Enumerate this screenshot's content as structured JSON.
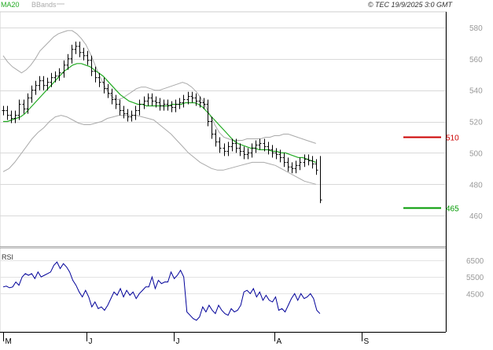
{
  "header": {
    "legend_ma": "MA20",
    "legend_bb": "BBands",
    "copyright": "© TEC 19/9/2025 3:0 GMT"
  },
  "rsi_label": "RSI",
  "chart_data": [
    {
      "type": "ohlc",
      "y_ticks": [
        "460",
        "480",
        "500",
        "520",
        "540",
        "560",
        "580"
      ],
      "ylim": [
        440,
        590
      ],
      "grid": true,
      "x_labels": [
        "M",
        "J",
        "J",
        "A",
        "S"
      ],
      "x_label_index": [
        0,
        20,
        41,
        65,
        86
      ],
      "closes": [
        527,
        524,
        522,
        524,
        531,
        528,
        535,
        540,
        543,
        546,
        543,
        545,
        548,
        549,
        551,
        556,
        560,
        566,
        568,
        564,
        562,
        559,
        552,
        548,
        545,
        541,
        538,
        534,
        531,
        527,
        525,
        523,
        524,
        527,
        531,
        533,
        535,
        533,
        532,
        530,
        531,
        530,
        529,
        531,
        532,
        534,
        536,
        535,
        533,
        532,
        531,
        520,
        512,
        507,
        503,
        501,
        504,
        506,
        503,
        501,
        499,
        500,
        503,
        505,
        506,
        504,
        502,
        500,
        499,
        497,
        494,
        491,
        490,
        492,
        494,
        496,
        495,
        493,
        489
      ],
      "series": [
        {
          "name": "MA20",
          "color": "#22aa22",
          "values": [
            520,
            520,
            521,
            522,
            523,
            525,
            528,
            531,
            534,
            537,
            540,
            543,
            546,
            549,
            552,
            554,
            556,
            557,
            557,
            556,
            555,
            553,
            551,
            549,
            546,
            543,
            540,
            537,
            535,
            533,
            532,
            531,
            531,
            530,
            530,
            530,
            530,
            530,
            530,
            531,
            531,
            531,
            532,
            532,
            532,
            531,
            529,
            526,
            523,
            520,
            517,
            514,
            511,
            508,
            506,
            505,
            504,
            503,
            503,
            502,
            502,
            502,
            501,
            501,
            500,
            500,
            499,
            498,
            497,
            497,
            496,
            495,
            494
          ]
        },
        {
          "name": "BBands",
          "color": "#aaaaaa",
          "role": "upper",
          "values": [
            562,
            558,
            555,
            553,
            551,
            553,
            556,
            560,
            565,
            568,
            571,
            574,
            576,
            577,
            578,
            578,
            576,
            573,
            569,
            563,
            556,
            549,
            543,
            538,
            535,
            534,
            535,
            537,
            539,
            541,
            542,
            542,
            541,
            540,
            540,
            541,
            542,
            543,
            544,
            545,
            544,
            542,
            539,
            535,
            530,
            524,
            518,
            513,
            510,
            509,
            508,
            508,
            508,
            509,
            509,
            509,
            509,
            510,
            510,
            511,
            511,
            512,
            512,
            511,
            510,
            509,
            508,
            507,
            506
          ]
        },
        {
          "name": "BBands",
          "color": "#aaaaaa",
          "role": "lower",
          "values": [
            488,
            490,
            494,
            499,
            504,
            509,
            513,
            516,
            520,
            523,
            524,
            523,
            521,
            519,
            518,
            518,
            519,
            520,
            522,
            523,
            524,
            524,
            524,
            524,
            523,
            522,
            521,
            518,
            515,
            512,
            508,
            504,
            500,
            497,
            494,
            492,
            490,
            489,
            489,
            490,
            491,
            492,
            493,
            494,
            494,
            494,
            493,
            492,
            490,
            488,
            486,
            484,
            482,
            481,
            480
          ]
        }
      ],
      "markers": [
        {
          "label": "510",
          "value": 510,
          "color": "#cc0000"
        },
        {
          "label": "465",
          "value": 465,
          "color": "#009900"
        }
      ],
      "last_bar": {
        "high": 498,
        "low": 468,
        "close": 470
      }
    },
    {
      "type": "line",
      "name": "RSI",
      "y_ticks": [
        "4500",
        "5500",
        "6500"
      ],
      "ylim": [
        2200,
        7300
      ],
      "color": "#000099",
      "values": [
        4900,
        4950,
        4850,
        4900,
        5200,
        5000,
        5500,
        5700,
        5600,
        5700,
        5400,
        5800,
        5500,
        5600,
        5700,
        5800,
        6200,
        6400,
        6000,
        6300,
        6100,
        5800,
        5300,
        5000,
        4600,
        4300,
        4700,
        4300,
        3700,
        4000,
        3600,
        3700,
        3500,
        3800,
        4200,
        4600,
        4400,
        4800,
        4300,
        4700,
        4400,
        4600,
        4200,
        4500,
        4700,
        4900,
        4900,
        5500,
        4800,
        5300,
        5100,
        5200,
        5200,
        5800,
        5400,
        5600,
        5900,
        5500,
        3400,
        3200,
        3000,
        2900,
        3100,
        3700,
        3400,
        3800,
        3500,
        3300,
        3800,
        3500,
        3300,
        3200,
        3600,
        3400,
        3500,
        3800,
        4600,
        4700,
        4500,
        4800,
        4300,
        4600,
        4100,
        4400,
        4100,
        4000,
        4300,
        3500,
        3600,
        3400,
        3800,
        4200,
        4500,
        4100,
        4500,
        4200,
        4300,
        4500,
        4200,
        3500,
        3300
      ]
    }
  ]
}
